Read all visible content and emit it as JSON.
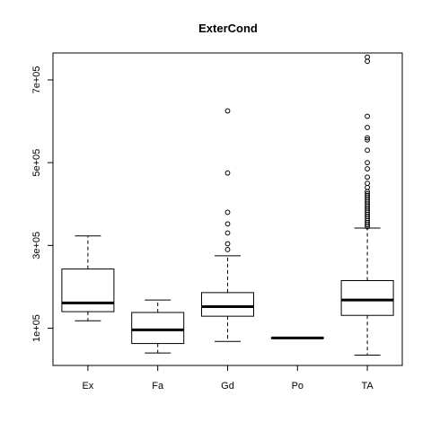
{
  "chart_data": {
    "type": "boxplot",
    "title": "ExterCond",
    "xlabel": "",
    "ylabel": "",
    "categories": [
      "Ex",
      "Fa",
      "Gd",
      "Po",
      "TA"
    ],
    "ylim": [
      10000,
      765000
    ],
    "yticks": [
      100000,
      300000,
      500000,
      700000
    ],
    "ytick_labels": [
      "1e+05",
      "3e+05",
      "5e+05",
      "7e+05"
    ],
    "grid": false,
    "boxes": [
      {
        "category": "Ex",
        "whisker_low": 118000,
        "q1": 140000,
        "median": 161000,
        "q3": 243000,
        "whisker_high": 323000,
        "outliers": []
      },
      {
        "category": "Fa",
        "whisker_low": 40000,
        "q1": 63000,
        "median": 96000,
        "q3": 138000,
        "whisker_high": 168000,
        "outliers": []
      },
      {
        "category": "Gd",
        "whisker_low": 68000,
        "q1": 129000,
        "median": 152000,
        "q3": 186000,
        "whisker_high": 275000,
        "outliers": [
          290000,
          304000,
          330000,
          352000,
          380000,
          475000,
          625000
        ]
      },
      {
        "category": "Po",
        "whisker_low": 76000,
        "q1": 76000,
        "median": 76500,
        "q3": 77000,
        "whisker_high": 77000,
        "outliers": []
      },
      {
        "category": "TA",
        "whisker_low": 34900,
        "q1": 131000,
        "median": 168000,
        "q3": 215000,
        "whisker_high": 342000,
        "outliers": [
          345000,
          350000,
          355000,
          360000,
          365000,
          370000,
          375000,
          380000,
          385000,
          390000,
          395000,
          400000,
          405000,
          410000,
          415000,
          420000,
          425000,
          430000,
          440000,
          450000,
          465000,
          485000,
          500000,
          530000,
          555000,
          560000,
          585000,
          612000,
          745000,
          755000
        ]
      }
    ]
  }
}
